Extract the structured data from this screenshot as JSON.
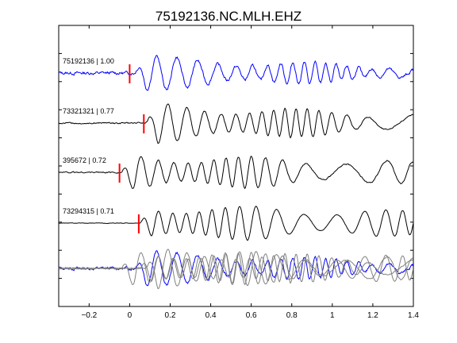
{
  "chart_data": {
    "type": "line",
    "title": "75192136.NC.MLH.EHZ",
    "xlabel": "",
    "ylabel": "",
    "xlim": [
      -0.35,
      1.4
    ],
    "x_ticks": [
      -0.2,
      0,
      0.2,
      0.4,
      0.6,
      0.8,
      1,
      1.2,
      1.4
    ],
    "x_tick_labels": [
      "−0.2",
      "0",
      "0.2",
      "0.4",
      "0.6",
      "0.8",
      "1",
      "1.2",
      "1.4"
    ],
    "y_ticks_visible": false,
    "grid": false,
    "series": [
      {
        "label": "75192136 | 1.00",
        "color": "#0000ff",
        "pick": 0.0,
        "onset": 0.02,
        "amp": 0.9,
        "noise": 0.12,
        "period": 0.085,
        "decay": 1.1,
        "phase": 0.0
      },
      {
        "label": "73321321 | 0.77",
        "color": "#000000",
        "pick": 0.07,
        "onset": 0.08,
        "amp": 1.0,
        "noise": 0.05,
        "period": 0.082,
        "decay": 0.8,
        "phase": 0.6
      },
      {
        "label": "395672 | 0.72",
        "color": "#000000",
        "pick": -0.05,
        "onset": -0.04,
        "amp": 1.0,
        "noise": 0.05,
        "period": 0.083,
        "decay": 0.7,
        "phase": 1.2
      },
      {
        "label": "73294315 | 0.71",
        "color": "#000000",
        "pick": 0.045,
        "onset": 0.05,
        "amp": 1.0,
        "noise": 0.02,
        "period": 0.08,
        "decay": 0.6,
        "phase": 0.3
      }
    ],
    "overlay": {
      "colors": [
        "#0000ff",
        "#808080",
        "#808080",
        "#808080"
      ]
    }
  }
}
